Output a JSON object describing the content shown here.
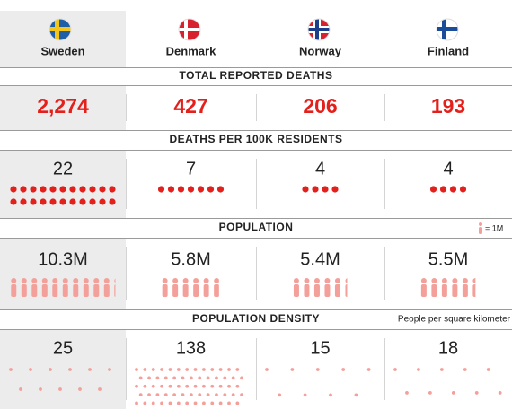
{
  "countries": [
    "Sweden",
    "Denmark",
    "Norway",
    "Finland"
  ],
  "sections": [
    {
      "title": "TOTAL REPORTED DEATHS",
      "values": [
        2274,
        427,
        206,
        193
      ],
      "value_labels": [
        "2,274",
        "427",
        "206",
        "193"
      ]
    },
    {
      "title": "DEATHS PER 100K RESIDENTS",
      "values": [
        22,
        7,
        4,
        4
      ]
    },
    {
      "title": "POPULATION",
      "note": "= 1M",
      "values": [
        10.3,
        5.8,
        5.4,
        5.5
      ],
      "value_labels": [
        "10.3M",
        "5.8M",
        "5.4M",
        "5.5M"
      ]
    },
    {
      "title": "POPULATION DENSITY",
      "note": "People per square kilometer",
      "values": [
        25,
        138,
        15,
        18
      ]
    }
  ]
}
